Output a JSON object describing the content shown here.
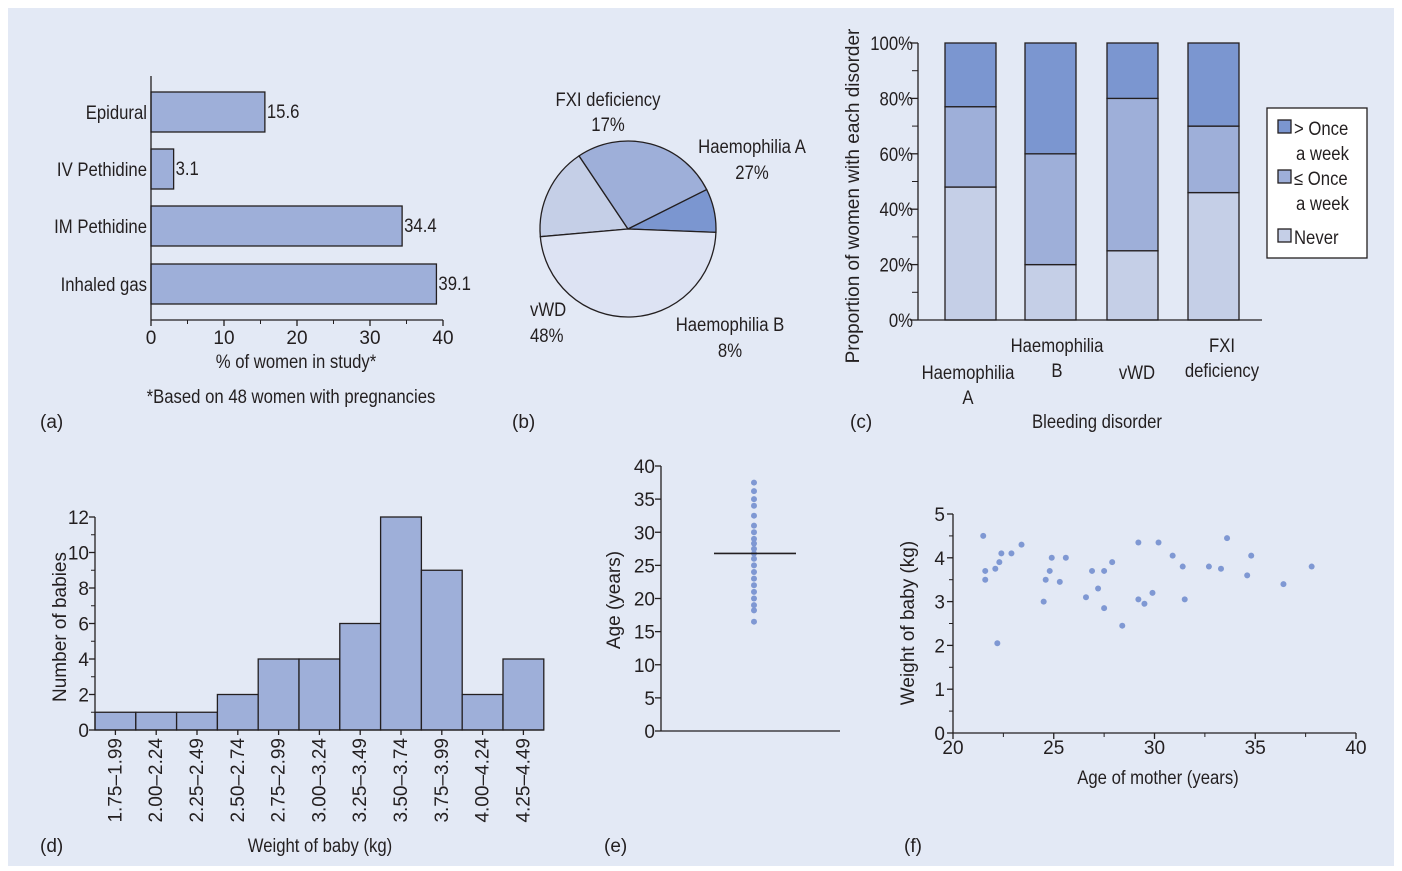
{
  "colors": {
    "panel_bg": "#e3e9f5",
    "light": "#c5cfe7",
    "mid": "#9eafd9",
    "dark": "#7b96d0",
    "pie_light": "#dde3f3",
    "dot": "#7f98d3",
    "line": "#231f20"
  },
  "chart_data": [
    {
      "panel_label": "(a)",
      "type": "bar",
      "orientation": "horizontal",
      "categories": [
        "Epidural",
        "IV Pethidine",
        "IM Pethidine",
        "Inhaled gas"
      ],
      "values": [
        15.6,
        3.1,
        34.4,
        39.1
      ],
      "value_labels": [
        "15.6",
        "3.1",
        "34.4",
        "39.1"
      ],
      "xlabel": "% of women in study*",
      "footnote": "*Based on 48 women with pregnancies",
      "xlim": [
        0,
        40
      ],
      "xticks": [
        "0",
        "10",
        "20",
        "30",
        "40"
      ],
      "grid": false
    },
    {
      "panel_label": "(b)",
      "type": "pie",
      "slices": [
        {
          "name": "FXI deficiency",
          "value": 17,
          "label": "17%",
          "color": "light"
        },
        {
          "name": "Haemophilia A",
          "value": 27,
          "label": "27%",
          "color": "mid"
        },
        {
          "name": "Haemophilia B",
          "value": 8,
          "label": "8%",
          "color": "dark"
        },
        {
          "name": "vWD",
          "value": 48,
          "label": "48%",
          "color": "pie_light"
        }
      ]
    },
    {
      "panel_label": "(c)",
      "type": "bar",
      "stacked": true,
      "categories": [
        "Haemophilia A",
        "Haemophilia B",
        "vWD",
        "FXI deficiency"
      ],
      "category_labels": [
        [
          "Haemophilia",
          "A"
        ],
        [
          "Haemophilia",
          "B"
        ],
        [
          "vWD"
        ],
        [
          "FXI",
          "deficiency"
        ]
      ],
      "series": [
        {
          "name": "Never",
          "values": [
            48,
            20,
            25,
            46
          ],
          "color": "light"
        },
        {
          "name": "≤ Once a week",
          "values": [
            29,
            40,
            55,
            24
          ],
          "color": "mid"
        },
        {
          "name": "> Once a week",
          "values": [
            23,
            40,
            20,
            30
          ],
          "color": "dark"
        }
      ],
      "legend": {
        "placement": "right",
        "entries": [
          {
            "lines": [
              "> Once",
              "a week"
            ],
            "color": "dark"
          },
          {
            "lines": [
              "≤ Once",
              "a week"
            ],
            "color": "mid"
          },
          {
            "lines": [
              "Never"
            ],
            "color": "light"
          }
        ]
      },
      "xlabel": "Bleeding disorder",
      "ylabel": "Proportion of women with each disorder",
      "ylim": [
        0,
        100
      ],
      "yticks": [
        "0%",
        "20%",
        "40%",
        "60%",
        "80%",
        "100%"
      ],
      "grid": false
    },
    {
      "panel_label": "(d)",
      "type": "bar",
      "histogram": true,
      "categories": [
        "1.75–1.99",
        "2.00–2.24",
        "2.25–2.49",
        "2.50–2.74",
        "2.75–2.99",
        "3.00–3.24",
        "3.25–3.49",
        "3.50–3.74",
        "3.75–3.99",
        "4.00–4.24",
        "4.25–4.49"
      ],
      "values": [
        1,
        1,
        1,
        2,
        4,
        4,
        6,
        12,
        9,
        2,
        4
      ],
      "xlabel": "Weight of baby (kg)",
      "ylabel": "Number of babies",
      "ylim": [
        0,
        12
      ],
      "yticks": [
        "0",
        "2",
        "4",
        "6",
        "8",
        "10",
        "12"
      ],
      "grid": false
    },
    {
      "panel_label": "(e)",
      "type": "scatter",
      "subtype": "dot plot",
      "values": [
        16.5,
        18.2,
        19.0,
        20.0,
        21.0,
        22.0,
        23.0,
        24.0,
        25.0,
        26.0,
        26.8,
        27.5,
        28.3,
        29.0,
        30.0,
        31.0,
        32.5,
        34.0,
        35.0,
        36.2,
        37.5
      ],
      "mean": 26.8,
      "ylabel": "Age (years)",
      "ylim": [
        0,
        40
      ],
      "yticks": [
        "0",
        "5",
        "10",
        "15",
        "20",
        "25",
        "30",
        "35",
        "40"
      ],
      "grid": false
    },
    {
      "panel_label": "(f)",
      "type": "scatter",
      "points": [
        {
          "x": 21.5,
          "y": 4.5
        },
        {
          "x": 21.6,
          "y": 3.7
        },
        {
          "x": 21.6,
          "y": 3.5
        },
        {
          "x": 22.1,
          "y": 3.75
        },
        {
          "x": 22.2,
          "y": 2.05
        },
        {
          "x": 22.3,
          "y": 3.9
        },
        {
          "x": 22.4,
          "y": 4.1
        },
        {
          "x": 22.9,
          "y": 4.1
        },
        {
          "x": 23.4,
          "y": 4.3
        },
        {
          "x": 24.5,
          "y": 3.0
        },
        {
          "x": 24.6,
          "y": 3.5
        },
        {
          "x": 24.8,
          "y": 3.7
        },
        {
          "x": 24.9,
          "y": 4.0
        },
        {
          "x": 25.3,
          "y": 3.45
        },
        {
          "x": 25.6,
          "y": 4.0
        },
        {
          "x": 26.6,
          "y": 3.1
        },
        {
          "x": 26.9,
          "y": 3.7
        },
        {
          "x": 27.2,
          "y": 3.3
        },
        {
          "x": 27.5,
          "y": 2.85
        },
        {
          "x": 27.5,
          "y": 3.7
        },
        {
          "x": 27.9,
          "y": 3.9
        },
        {
          "x": 28.4,
          "y": 2.45
        },
        {
          "x": 29.2,
          "y": 3.05
        },
        {
          "x": 29.2,
          "y": 4.35
        },
        {
          "x": 29.5,
          "y": 2.95
        },
        {
          "x": 29.9,
          "y": 3.2
        },
        {
          "x": 30.2,
          "y": 4.35
        },
        {
          "x": 30.9,
          "y": 4.05
        },
        {
          "x": 31.4,
          "y": 3.8
        },
        {
          "x": 31.5,
          "y": 3.05
        },
        {
          "x": 32.7,
          "y": 3.8
        },
        {
          "x": 33.3,
          "y": 3.75
        },
        {
          "x": 33.6,
          "y": 4.45
        },
        {
          "x": 34.6,
          "y": 3.6
        },
        {
          "x": 34.8,
          "y": 4.05
        },
        {
          "x": 36.4,
          "y": 3.4
        },
        {
          "x": 37.8,
          "y": 3.8
        }
      ],
      "xlabel": "Age of mother (years)",
      "ylabel": "Weight of baby (kg)",
      "xlim": [
        20,
        40
      ],
      "ylim": [
        0,
        5
      ],
      "xticks": [
        "20",
        "25",
        "30",
        "35",
        "40"
      ],
      "yticks": [
        "0",
        "1",
        "2",
        "3",
        "4",
        "5"
      ],
      "grid": false
    }
  ]
}
